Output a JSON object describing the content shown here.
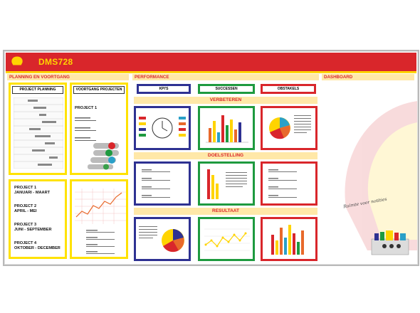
{
  "board": {
    "title": "DMS728",
    "sections": {
      "planning": "PLANNING EN VOORTGANG",
      "performance": "PERFORMANCE",
      "dashboard": "DASHBOARD"
    },
    "planning": {
      "project_planning_label": "PROJECT PLANNING",
      "voortgang_label": "VOORTGANG PROJECTEN",
      "project_title": "PROJECT 1",
      "projects": [
        {
          "name": "PROJECT 1",
          "period": "JANUARI - MAART"
        },
        {
          "name": "PROJECT 2",
          "period": "APRIL - MEI"
        },
        {
          "name": "PROJECT 3",
          "period": "JUNI - SEPTEMBER"
        },
        {
          "name": "PROJECT 4",
          "period": "OKTOBER - DECEMBER"
        }
      ]
    },
    "performance": {
      "tabs": [
        "KPI'S",
        "SUCCESSEN",
        "OBSTAKELS"
      ],
      "bands": [
        "VERBETEREN",
        "DOELSTELLING",
        "RESULTAAT"
      ]
    },
    "dashboard": {
      "note": "Ruimte voor notities"
    },
    "colors": {
      "red": "#d9262b",
      "yellow": "#ffd400",
      "blue": "#2e3192",
      "green": "#1e9a3f"
    }
  }
}
